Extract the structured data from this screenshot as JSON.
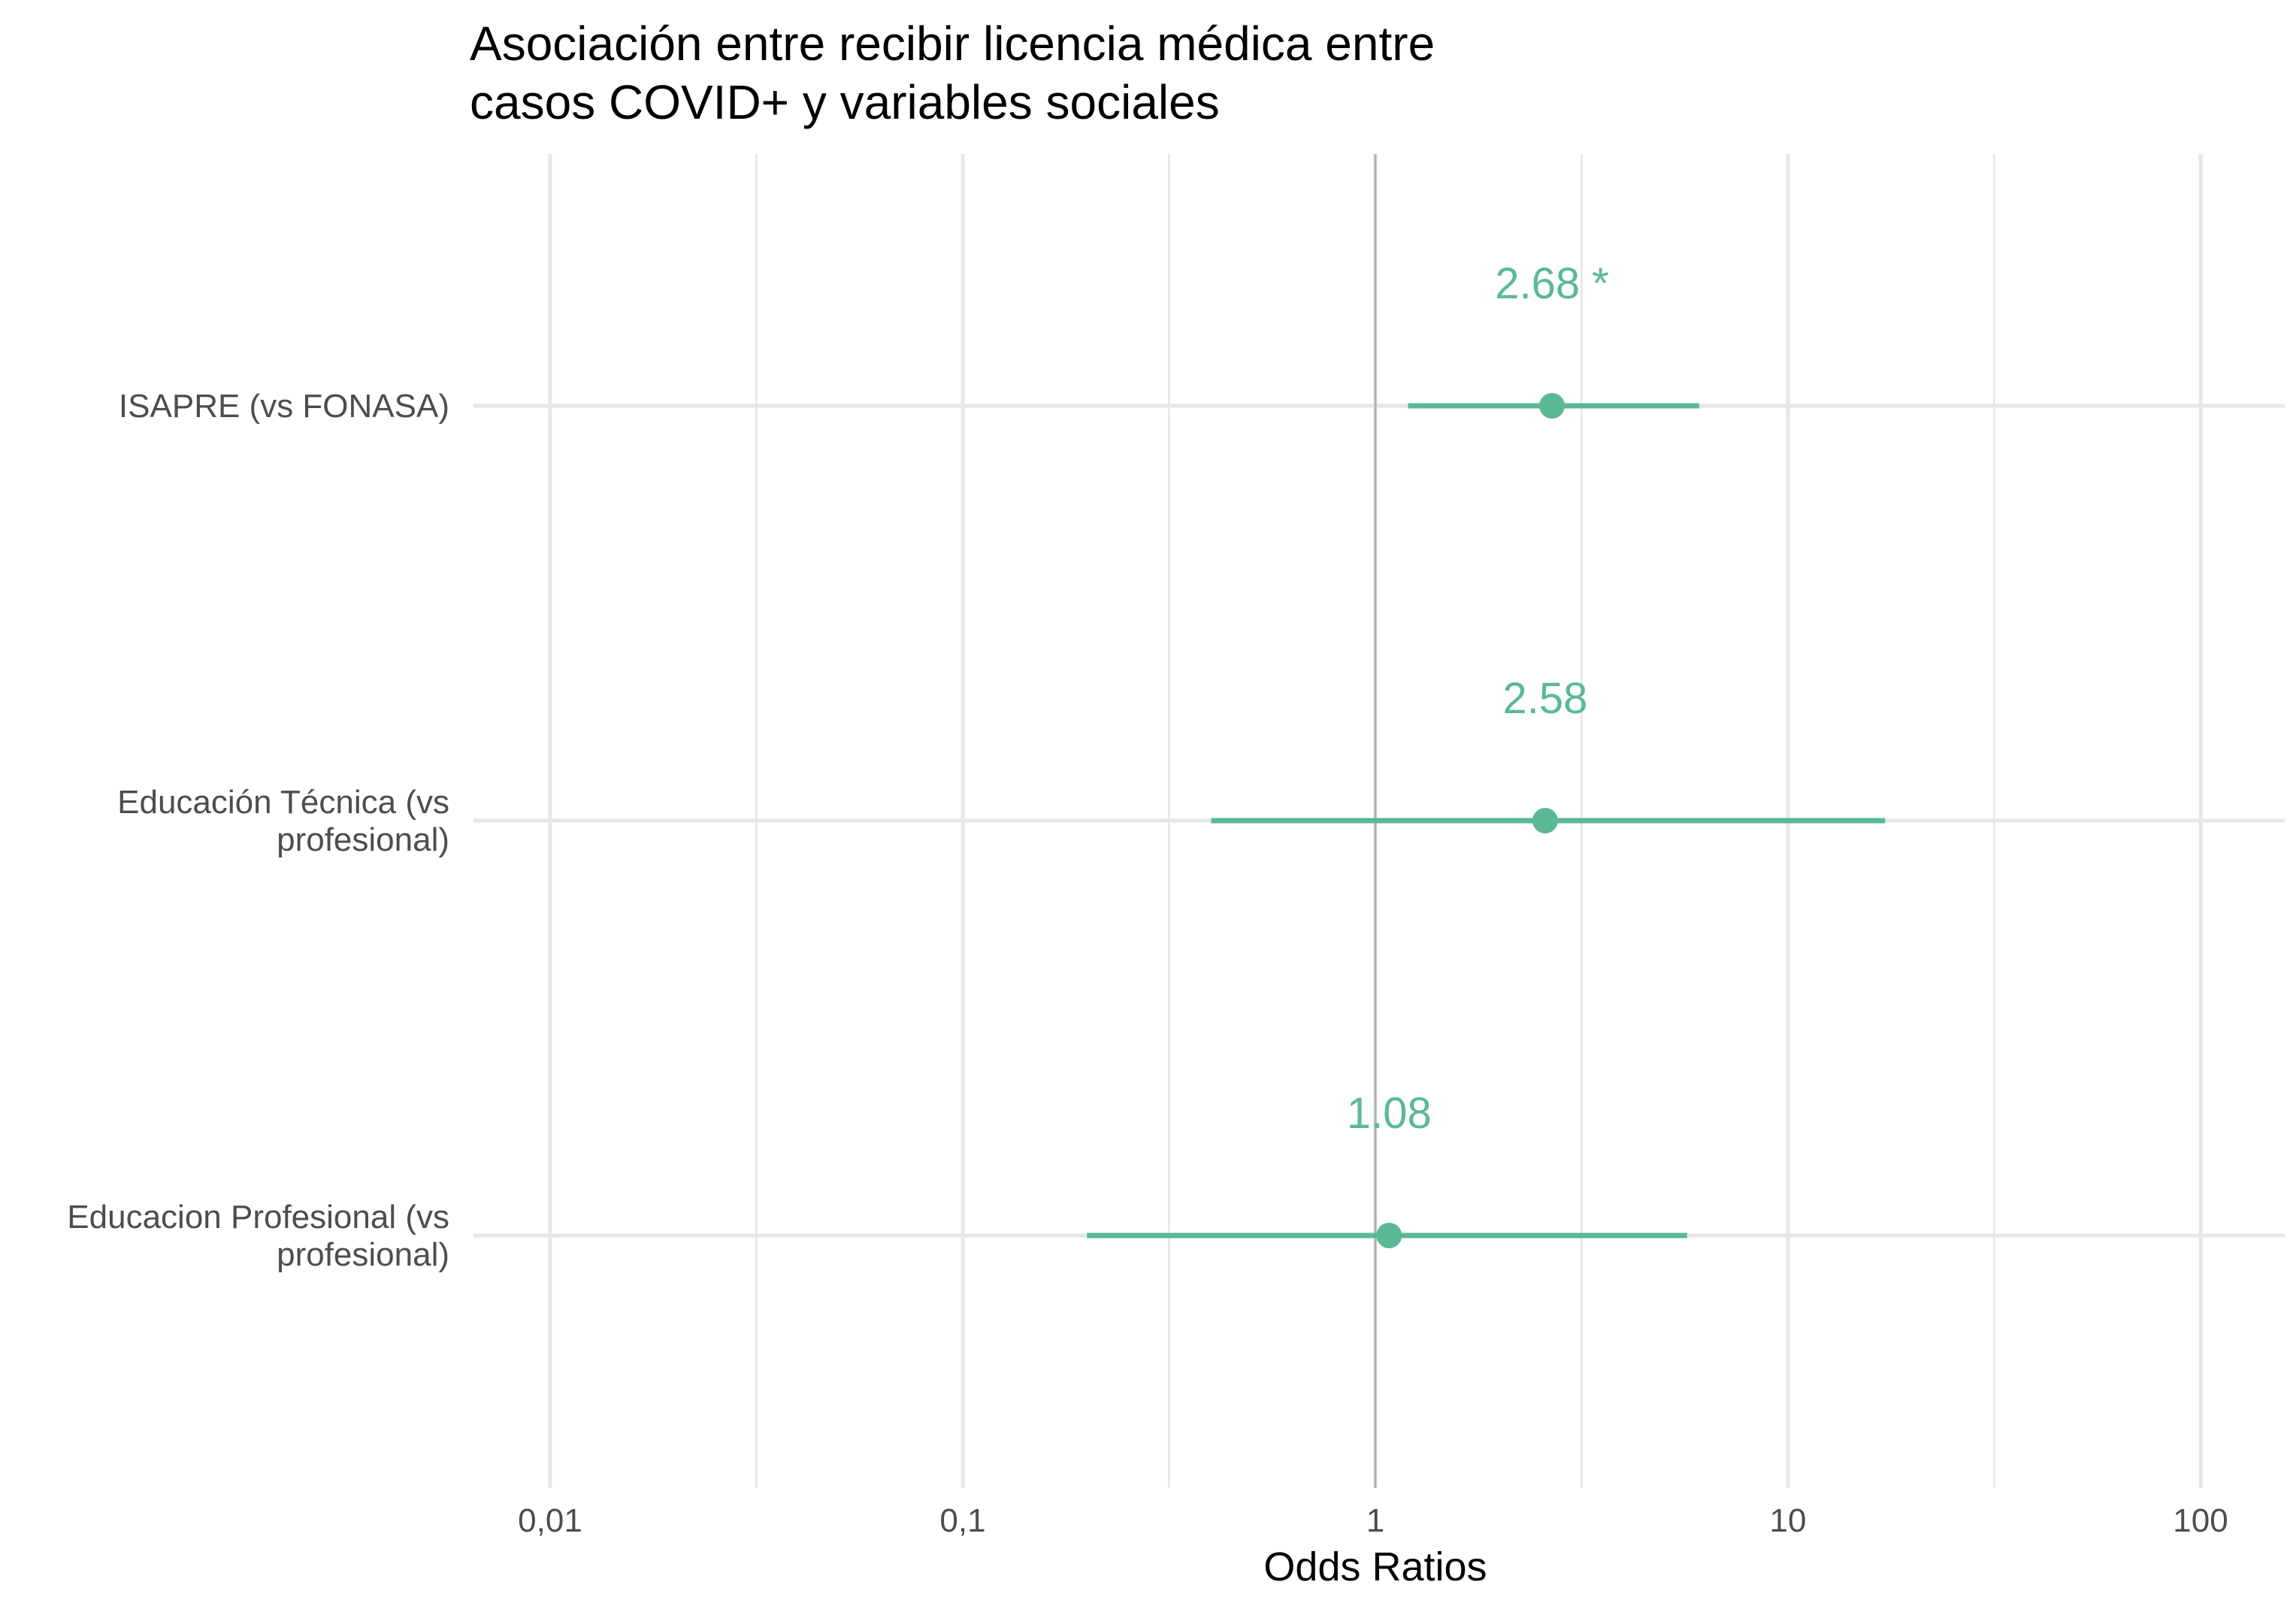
{
  "chart_data": {
    "type": "forest",
    "title_lines": [
      "Asociación entre recibir licencia médica entre",
      "casos COVID+ y variables sociales"
    ],
    "xlabel": "Odds Ratios",
    "x_scale": "log10",
    "xlim": [
      0.006,
      140
    ],
    "x_ticks": [
      {
        "value": 0.01,
        "label": "0,01"
      },
      {
        "value": 0.1,
        "label": "0,1"
      },
      {
        "value": 1,
        "label": "1"
      },
      {
        "value": 10,
        "label": "10"
      },
      {
        "value": 100,
        "label": "100"
      }
    ],
    "x_minor_gridlines": [
      0.0316,
      0.316,
      3.16,
      31.6
    ],
    "reference_line": 1,
    "color": "#5ab995",
    "reference_color": "#b3b3b3",
    "grid_color": "#e6e6e6",
    "rows": [
      {
        "label_lines": [
          "ISAPRE (vs FONASA)"
        ],
        "estimate": 2.68,
        "ci": [
          1.2,
          6.1
        ],
        "value_label": "2.68 *"
      },
      {
        "label_lines": [
          "Educación Técnica  (vs",
          "profesional)"
        ],
        "estimate": 2.58,
        "ci": [
          0.4,
          17.2
        ],
        "value_label": "2.58"
      },
      {
        "label_lines": [
          "Educacion Profesional (vs",
          "profesional)"
        ],
        "estimate": 1.08,
        "ci": [
          0.2,
          5.7
        ],
        "value_label": "1.08"
      }
    ]
  }
}
